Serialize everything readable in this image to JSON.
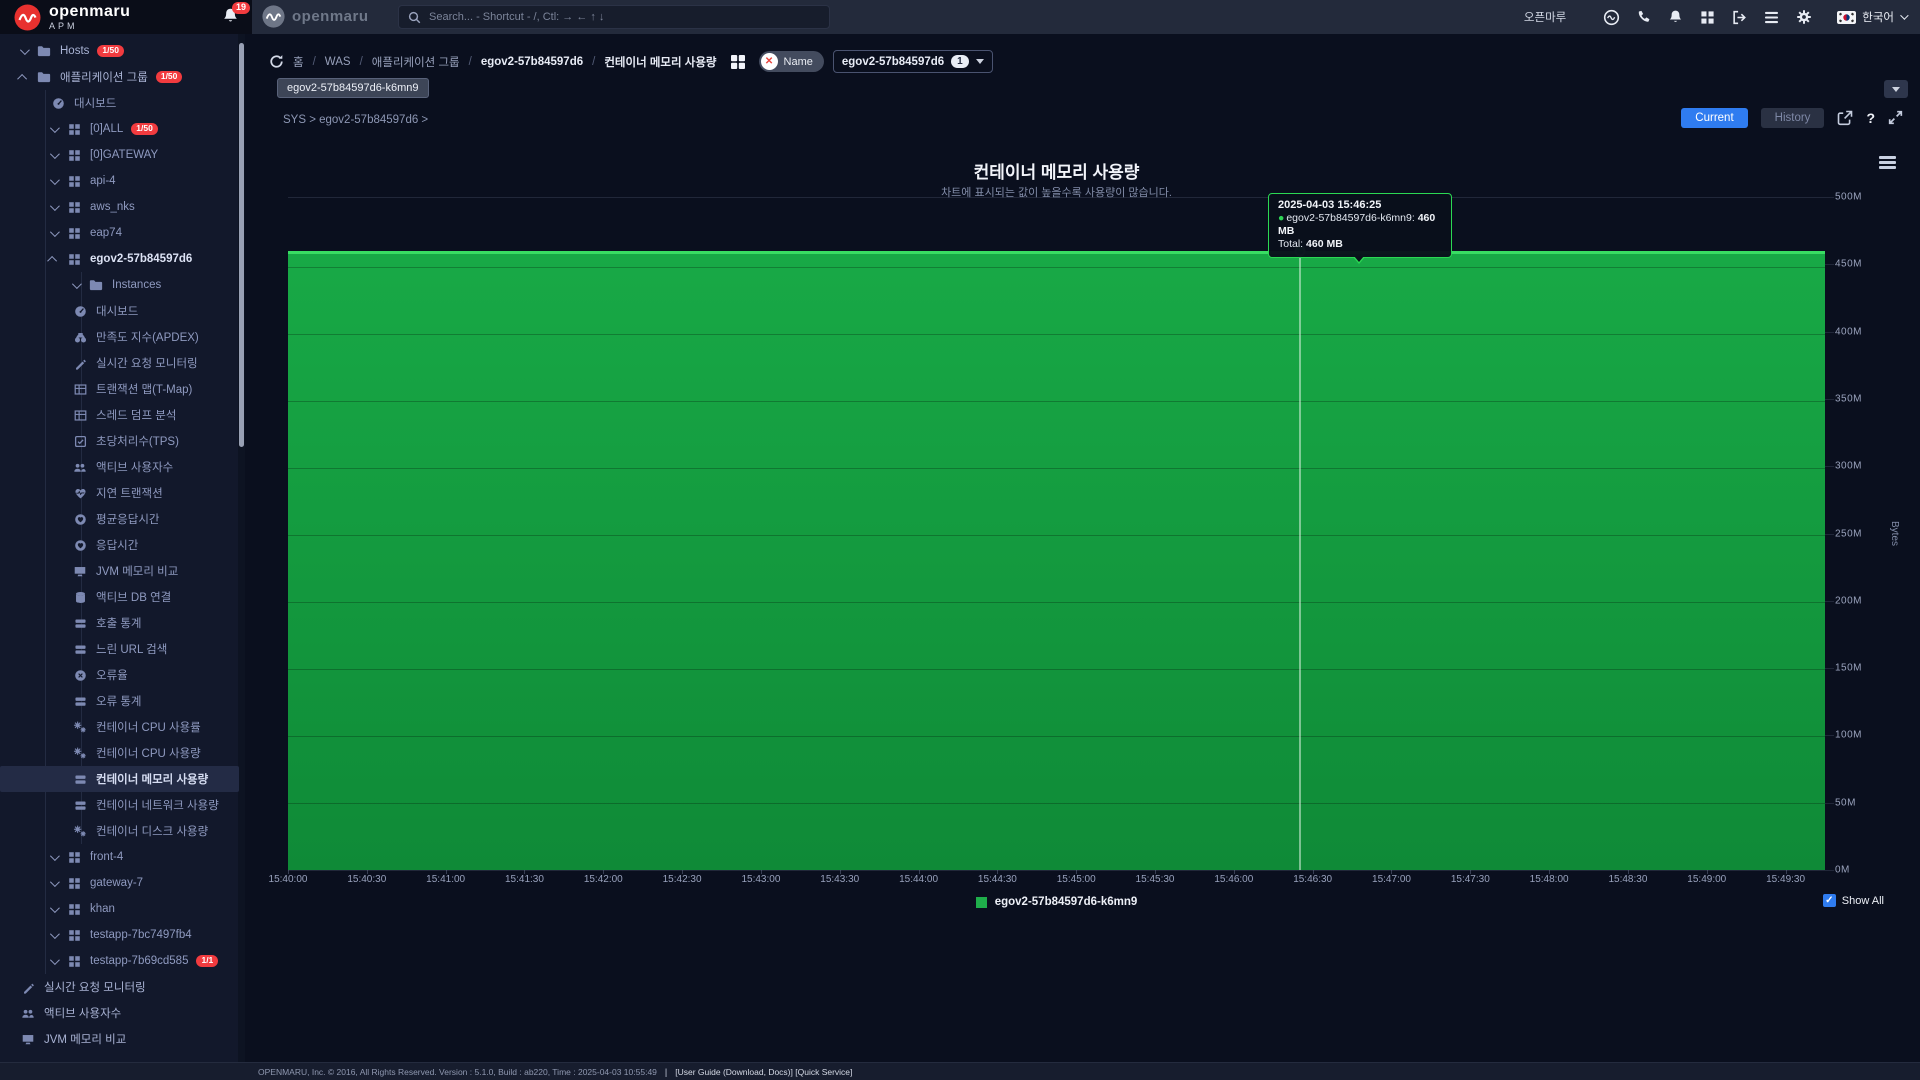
{
  "brand": {
    "name": "openmaru",
    "sub": "APM",
    "center_name": "openmaru"
  },
  "header": {
    "notification_count": "19",
    "search_placeholder": "Search... - Shortcut - /, Ctl: → ← ↑ ↓",
    "user_name": "오픈마루",
    "language": "한국어"
  },
  "sidebar": {
    "items": [
      {
        "label": "Hosts",
        "icon": "folder",
        "level": 0,
        "chevron": "down",
        "badge": "1/50"
      },
      {
        "label": "애플리케이션 그룹",
        "icon": "folder",
        "level": 0,
        "chevron": "up",
        "badge": "1/50"
      },
      {
        "label": "대시보드",
        "icon": "gauge",
        "level": 1
      },
      {
        "label": "[0]ALL",
        "icon": "grid",
        "level": 1,
        "chevron": "down",
        "badge": "1/50"
      },
      {
        "label": "[0]GATEWAY",
        "icon": "grid",
        "level": 1,
        "chevron": "down"
      },
      {
        "label": "api-4",
        "icon": "grid",
        "level": 1,
        "chevron": "down"
      },
      {
        "label": "aws_nks",
        "icon": "grid",
        "level": 1,
        "chevron": "down"
      },
      {
        "label": "eap74",
        "icon": "grid",
        "level": 1,
        "chevron": "down"
      },
      {
        "label": "egov2-57b84597d6",
        "icon": "grid",
        "level": 1,
        "chevron": "up",
        "bold": true
      },
      {
        "label": "Instances",
        "icon": "folder",
        "level": 2,
        "chevron": "down"
      },
      {
        "label": "대시보드",
        "icon": "gauge",
        "level": 2
      },
      {
        "label": "만족도 지수(APDEX)",
        "icon": "binoculars",
        "level": 2
      },
      {
        "label": "실시간 요청 모니터링",
        "icon": "signature",
        "level": 2
      },
      {
        "label": "트랜잭션 맵(T-Map)",
        "icon": "table",
        "level": 2
      },
      {
        "label": "스레드 덤프 분석",
        "icon": "table",
        "level": 2
      },
      {
        "label": "초당처리수(TPS)",
        "icon": "check-square",
        "level": 2
      },
      {
        "label": "액티브 사용자수",
        "icon": "users",
        "level": 2
      },
      {
        "label": "지연 트랜잭션",
        "icon": "heartbeat",
        "level": 2
      },
      {
        "label": "평균응답시간",
        "icon": "heart-circle",
        "level": 2
      },
      {
        "label": "응답시간",
        "icon": "heart-circle",
        "level": 2
      },
      {
        "label": "JVM 메모리 비교",
        "icon": "desktop",
        "level": 2
      },
      {
        "label": "액티브 DB 연결",
        "icon": "database",
        "level": 2
      },
      {
        "label": "호출 통계",
        "icon": "bars",
        "level": 2
      },
      {
        "label": "느린 URL 검색",
        "icon": "bars",
        "level": 2
      },
      {
        "label": "오류율",
        "icon": "error-circle",
        "level": 2
      },
      {
        "label": "오류 통계",
        "icon": "bars",
        "level": 2
      },
      {
        "label": "컨테이너 CPU 사용률",
        "icon": "gears",
        "level": 2
      },
      {
        "label": "컨테이너 CPU 사용량",
        "icon": "gears",
        "level": 2
      },
      {
        "label": "컨테이너 메모리 사용량",
        "icon": "bars",
        "level": 2,
        "selected": true
      },
      {
        "label": "컨테이너 네트워크 사용량",
        "icon": "bars",
        "level": 2
      },
      {
        "label": "컨테이너 디스크 사용량",
        "icon": "gears",
        "level": 2
      },
      {
        "label": "front-4",
        "icon": "grid",
        "level": 1,
        "chevron": "down"
      },
      {
        "label": "gateway-7",
        "icon": "grid",
        "level": 1,
        "chevron": "down"
      },
      {
        "label": "khan",
        "icon": "grid",
        "level": 1,
        "chevron": "down"
      },
      {
        "label": "testapp-7bc7497fb4",
        "icon": "grid",
        "level": 1,
        "chevron": "down"
      },
      {
        "label": "testapp-7b69cd585",
        "icon": "grid",
        "level": 1,
        "chevron": "down",
        "badge": "1/1"
      },
      {
        "label": "실시간 요청 모니터링",
        "icon": "signature",
        "level": 0
      },
      {
        "label": "액티브 사용자수",
        "icon": "users",
        "level": 0
      },
      {
        "label": "JVM 메모리 비교",
        "icon": "desktop",
        "level": 0
      }
    ]
  },
  "breadcrumb": {
    "items": [
      {
        "label": "홈",
        "strong": false
      },
      {
        "label": "WAS",
        "strong": false
      },
      {
        "label": "애플리케이션 그룹",
        "strong": false
      },
      {
        "label": "egov2-57b84597d6",
        "strong": true
      },
      {
        "label": "컨테이너 메모리 사용량",
        "strong": true
      }
    ]
  },
  "filter": {
    "name_label": "Name",
    "value": "egov2-57b84597d6",
    "count": "1",
    "instance_tag": "egov2-57b84597d6-k6mn9"
  },
  "context_path": "SYS > egov2-57b84597d6 >",
  "toolbar": {
    "current_label": "Current",
    "history_label": "History",
    "help_label": "?"
  },
  "chart": {
    "title": "컨테이너 메모리 사용량",
    "subtitle": "차트에 표시되는 값이 높을수록 사용량이 많습니다."
  },
  "tooltip": {
    "timestamp": "2025-04-03 15:46:25",
    "series_label": "egov2-57b84597d6-k6mn9:",
    "series_value": "460 MB",
    "total_label": "Total:",
    "total_value": "460 MB"
  },
  "legend": {
    "series_label": "egov2-57b84597d6-k6mn9",
    "show_all_label": "Show All"
  },
  "chart_data": {
    "type": "area",
    "title": "컨테이너 메모리 사용량",
    "subtitle": "차트에 표시되는 값이 높을수록 사용량이 많습니다.",
    "ylabel": "Bytes",
    "x": [
      "15:40:00",
      "15:40:30",
      "15:41:00",
      "15:41:30",
      "15:42:00",
      "15:42:30",
      "15:43:00",
      "15:43:30",
      "15:44:00",
      "15:44:30",
      "15:45:00",
      "15:45:30",
      "15:46:00",
      "15:46:30",
      "15:47:00",
      "15:47:30",
      "15:48:00",
      "15:48:30",
      "15:49:00",
      "15:49:30"
    ],
    "domain_seconds": 585,
    "series": [
      {
        "name": "egov2-57b84597d6-k6mn9",
        "unit": "MB",
        "values": [
          460,
          460,
          460,
          460,
          460,
          460,
          460,
          460,
          460,
          460,
          460,
          460,
          460,
          460,
          460,
          460,
          460,
          460,
          460,
          460
        ]
      }
    ],
    "ylim_mb": [
      0,
      500
    ],
    "ytick_step_mb": 50,
    "yticks": [
      "0M",
      "50M",
      "100M",
      "150M",
      "200M",
      "250M",
      "300M",
      "350M",
      "400M",
      "450M",
      "500M"
    ],
    "hover": {
      "time": "15:46:25",
      "datetime": "2025-04-03 15:46:25",
      "value_mb": 460,
      "total": "460 MB"
    },
    "legend_position": "bottom-center",
    "grid": true
  },
  "colors": {
    "accent_blue": "#2F7CF0",
    "chart_green_fill": "#16A243",
    "chart_green_line": "#39DD63",
    "badge_red": "#F23B3F",
    "tooltip_border": "#2BD853"
  },
  "footer": {
    "copyright": "OPENMARU, Inc. © 2016, All Rights Reserved. Version : 5.1.0, Build : ab220, Time : 2025-04-03 10:55:49",
    "separator": "|",
    "links": "[User Guide (Download, Docs)] [Quick Service]"
  }
}
